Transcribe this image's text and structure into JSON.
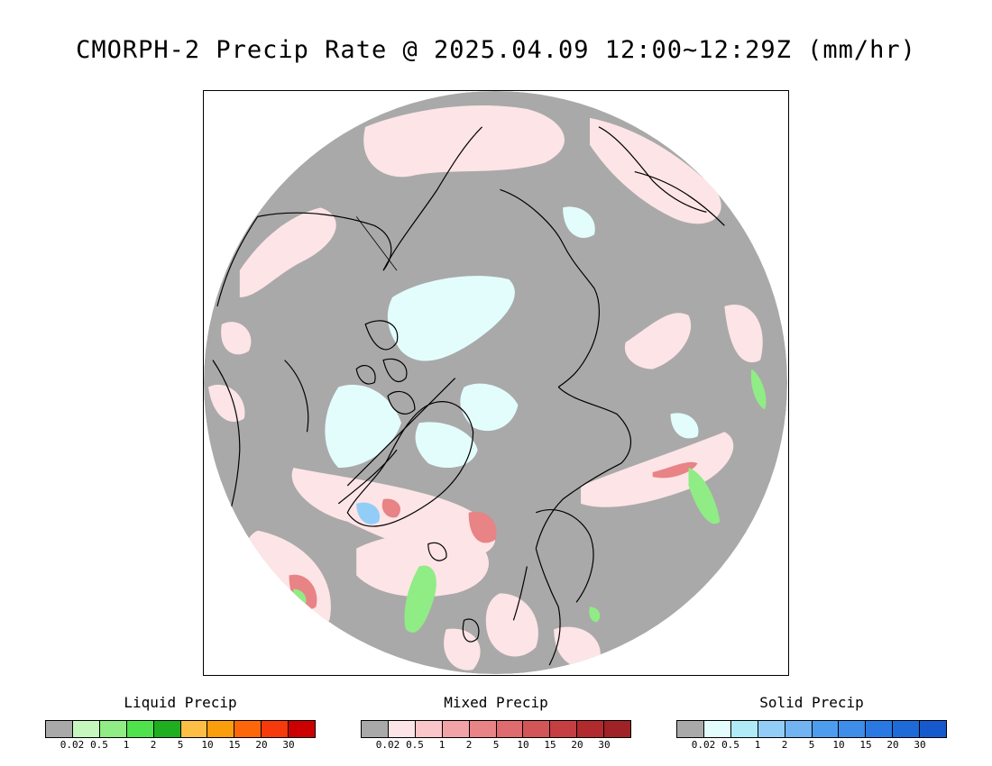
{
  "title": "CMORPH-2 Precip Rate @ 2025.04.09 12:00~12:29Z (mm/hr)",
  "map": {
    "projection": "north polar stereographic",
    "background_color": "#a9a9a9",
    "coastline_color": "#000000"
  },
  "legends": [
    {
      "id": "liquid",
      "title": "Liquid Precip",
      "colors": [
        "#a9a9a9",
        "#c6f8bd",
        "#90ec84",
        "#50e24c",
        "#1fae1f",
        "#fcbe45",
        "#fb9e0e",
        "#fd6709",
        "#f73a0c",
        "#cc0000"
      ],
      "ticks": [
        "0.02",
        "0.5",
        "1",
        "2",
        "5",
        "10",
        "15",
        "20",
        "30"
      ]
    },
    {
      "id": "mixed",
      "title": "Mixed Precip",
      "colors": [
        "#a9a9a9",
        "#fde4e6",
        "#fac6ca",
        "#f1a3a7",
        "#e88386",
        "#de6b6e",
        "#d25558",
        "#c43e42",
        "#b02a2e",
        "#9e2226"
      ],
      "ticks": [
        "0.02",
        "0.5",
        "1",
        "2",
        "5",
        "10",
        "15",
        "20",
        "30"
      ]
    },
    {
      "id": "solid",
      "title": "Solid Precip",
      "colors": [
        "#a9a9a9",
        "#e3fdfd",
        "#b0ecf8",
        "#92cdf7",
        "#72b3f2",
        "#4e9cee",
        "#3d8de9",
        "#2a79e3",
        "#1e6ad9",
        "#1659cd"
      ],
      "ticks": [
        "0.02",
        "0.5",
        "1",
        "2",
        "5",
        "10",
        "15",
        "20",
        "30"
      ]
    }
  ]
}
